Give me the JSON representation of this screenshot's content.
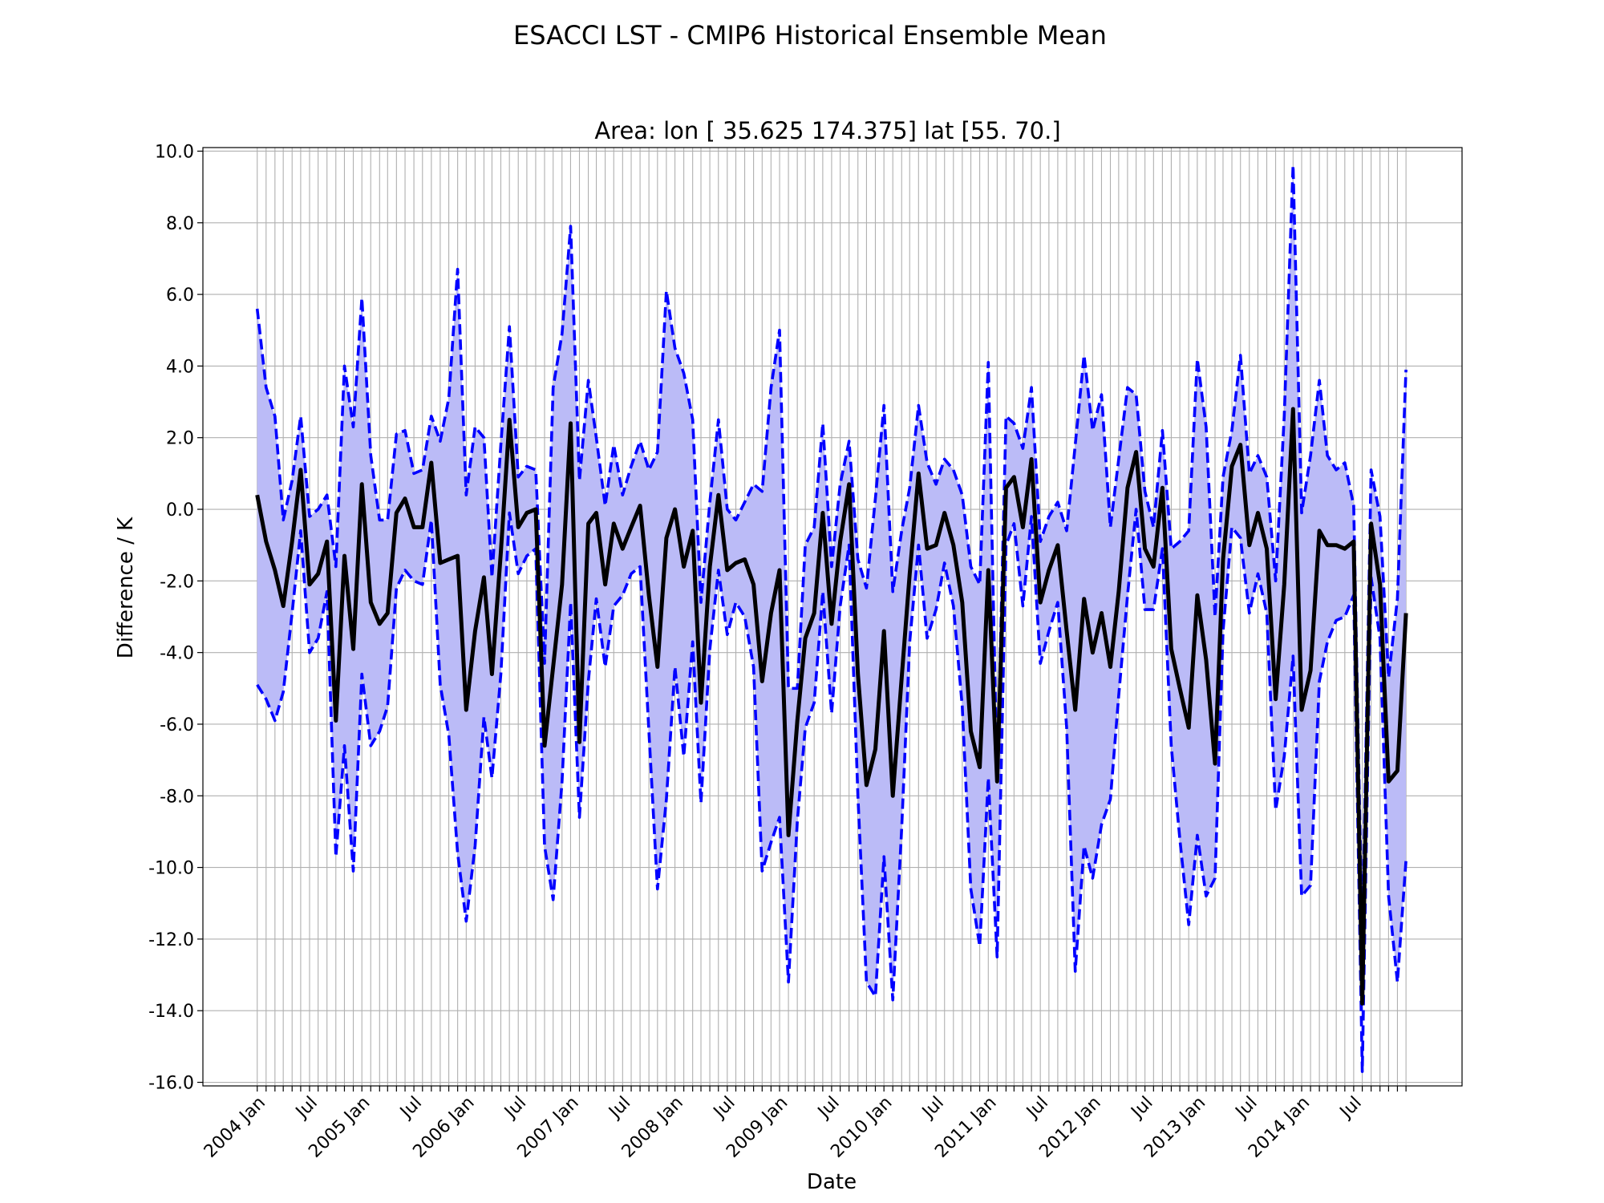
{
  "suptitle": "ESACCI LST - CMIP6 Historical Ensemble Mean",
  "chart_data": {
    "type": "line",
    "title": "Area: lon [ 35.625 174.375] lat [55. 70.]",
    "xlabel": "Date",
    "ylabel": "Difference / K",
    "ylim": [
      -16.1,
      10.1
    ],
    "yticks": [
      10,
      8,
      6,
      4,
      2,
      0,
      -2,
      -4,
      -6,
      -8,
      -10,
      -12,
      -14,
      -16
    ],
    "ytick_labels": [
      "10.0",
      "8.0",
      "6.0",
      "4.0",
      "2.0",
      "0.0",
      "-2.0",
      "-4.0",
      "-6.0",
      "-8.0",
      "-10.0",
      "-12.0",
      "-14.0",
      "-16.0"
    ],
    "xlim": [
      "2003-05-25",
      "2015-06-15"
    ],
    "x_start": "2003-12",
    "xtick_labels": [
      {
        "label": "2004 Jan",
        "date": "2004-01"
      },
      {
        "label": "Jul",
        "date": "2004-07"
      },
      {
        "label": "2005 Jan",
        "date": "2005-01"
      },
      {
        "label": "Jul",
        "date": "2005-07"
      },
      {
        "label": "2006 Jan",
        "date": "2006-01"
      },
      {
        "label": "Jul",
        "date": "2006-07"
      },
      {
        "label": "2007 Jan",
        "date": "2007-01"
      },
      {
        "label": "Jul",
        "date": "2007-07"
      },
      {
        "label": "2008 Jan",
        "date": "2008-01"
      },
      {
        "label": "Jul",
        "date": "2008-07"
      },
      {
        "label": "2009 Jan",
        "date": "2009-01"
      },
      {
        "label": "Jul",
        "date": "2009-07"
      },
      {
        "label": "2010 Jan",
        "date": "2010-01"
      },
      {
        "label": "Jul",
        "date": "2010-07"
      },
      {
        "label": "2011 Jan",
        "date": "2011-01"
      },
      {
        "label": "Jul",
        "date": "2011-07"
      },
      {
        "label": "2012 Jan",
        "date": "2012-01"
      },
      {
        "label": "Jul",
        "date": "2012-07"
      },
      {
        "label": "2013 Jan",
        "date": "2013-01"
      },
      {
        "label": "Jul",
        "date": "2013-07"
      },
      {
        "label": "2014 Jan",
        "date": "2014-01"
      },
      {
        "label": "Jul",
        "date": "2014-07"
      }
    ],
    "grid": true,
    "colors": {
      "mean": "#000000",
      "bounds": "#0000ff",
      "fill": "#bbbbf7",
      "grid": "#b0b0b0"
    },
    "series": [
      {
        "role": "mean",
        "values": [
          0.4,
          -0.9,
          -1.7,
          -2.7,
          -0.9,
          1.1,
          -2.1,
          -1.8,
          -0.9,
          -5.9,
          -1.3,
          -3.9,
          0.7,
          -2.6,
          -3.2,
          -2.9,
          -0.1,
          0.3,
          -0.5,
          -0.5,
          1.3,
          -1.5,
          -1.4,
          -1.3,
          -5.6,
          -3.4,
          -1.9,
          -4.6,
          -1.2,
          2.5,
          -0.5,
          -0.1,
          0.0,
          -6.6,
          -4.4,
          -2.1,
          2.4,
          -6.5,
          -0.4,
          -0.1,
          -2.1,
          -0.4,
          -1.1,
          -0.5,
          0.1,
          -2.4,
          -4.4,
          -0.8,
          0.0,
          -1.6,
          -0.6,
          -5.4,
          -1.6,
          0.4,
          -1.7,
          -1.5,
          -1.4,
          -2.1,
          -4.8,
          -2.9,
          -1.7,
          -9.1,
          -5.9,
          -3.6,
          -2.9,
          -0.1,
          -3.2,
          -0.9,
          0.7,
          -4.6,
          -7.7,
          -6.7,
          -3.4,
          -8.0,
          -4.7,
          -1.8,
          1.0,
          -1.1,
          -1.0,
          -0.1,
          -1.0,
          -2.6,
          -6.2,
          -7.2,
          -1.7,
          -7.6,
          0.6,
          0.9,
          -0.5,
          1.4,
          -2.6,
          -1.7,
          -1.0,
          -3.4,
          -5.6,
          -2.5,
          -4.0,
          -2.9,
          -4.4,
          -2.3,
          0.6,
          1.6,
          -1.1,
          -1.6,
          0.6,
          -3.9,
          -5.0,
          -6.1,
          -2.4,
          -4.2,
          -7.1,
          -1.4,
          1.2,
          1.8,
          -1.0,
          -0.1,
          -1.1,
          -5.3,
          -2.1,
          2.8,
          -5.6,
          -4.5,
          -0.6,
          -1.0,
          -1.0,
          -1.1,
          -0.9,
          -13.8,
          -0.4,
          -2.1,
          -7.6,
          -7.3,
          -2.9
        ]
      },
      {
        "role": "upper",
        "values": [
          5.6,
          3.4,
          2.6,
          -0.3,
          0.8,
          2.6,
          -0.2,
          0.0,
          0.4,
          -1.6,
          4.0,
          2.3,
          5.9,
          1.5,
          -0.3,
          -0.3,
          2.1,
          2.2,
          1.0,
          1.1,
          2.6,
          1.9,
          3.1,
          6.7,
          0.4,
          2.3,
          2.0,
          -1.9,
          1.8,
          5.1,
          0.9,
          1.2,
          1.1,
          -4.3,
          3.4,
          4.9,
          7.9,
          0.8,
          3.6,
          2.0,
          0.1,
          1.8,
          0.4,
          1.2,
          1.9,
          1.1,
          1.6,
          6.1,
          4.5,
          3.8,
          2.5,
          -2.6,
          0.2,
          2.5,
          0.0,
          -0.3,
          0.2,
          0.7,
          0.5,
          3.4,
          5.0,
          -5.0,
          -5.0,
          -1.0,
          -0.5,
          2.4,
          -1.6,
          0.7,
          1.9,
          -1.4,
          -2.2,
          0.3,
          2.9,
          -2.3,
          -0.6,
          0.6,
          2.9,
          1.3,
          0.7,
          1.4,
          1.1,
          0.4,
          -1.6,
          -2.1,
          4.1,
          -7.6,
          2.6,
          2.4,
          1.7,
          3.4,
          -0.9,
          -0.2,
          0.2,
          -0.6,
          1.8,
          4.3,
          2.2,
          3.2,
          -0.5,
          1.4,
          3.4,
          3.2,
          0.5,
          -0.5,
          2.2,
          -1.1,
          -0.9,
          -0.6,
          4.2,
          2.3,
          -3.0,
          0.9,
          2.2,
          4.3,
          1.0,
          1.5,
          0.9,
          -2.0,
          2.6,
          9.6,
          -0.1,
          1.5,
          3.6,
          1.5,
          1.1,
          1.3,
          0.1,
          -12.2,
          1.1,
          -0.2,
          -4.7,
          -2.5,
          3.9
        ]
      },
      {
        "role": "lower",
        "values": [
          -4.9,
          -5.3,
          -5.9,
          -5.1,
          -2.9,
          -0.6,
          -4.0,
          -3.6,
          -2.3,
          -9.7,
          -6.6,
          -10.1,
          -4.6,
          -6.6,
          -6.2,
          -5.5,
          -2.2,
          -1.7,
          -2.0,
          -2.1,
          -0.3,
          -4.9,
          -6.3,
          -9.6,
          -11.5,
          -9.4,
          -5.8,
          -7.5,
          -4.6,
          -0.1,
          -1.8,
          -1.3,
          -1.1,
          -9.4,
          -10.9,
          -7.6,
          -2.6,
          -8.6,
          -4.8,
          -2.5,
          -4.4,
          -2.7,
          -2.4,
          -1.8,
          -1.6,
          -6.2,
          -10.6,
          -8.1,
          -4.4,
          -6.9,
          -3.7,
          -8.2,
          -3.9,
          -1.7,
          -3.5,
          -2.6,
          -3.0,
          -4.4,
          -10.1,
          -9.3,
          -8.6,
          -13.2,
          -8.7,
          -6.1,
          -5.4,
          -2.3,
          -5.7,
          -2.7,
          -1.0,
          -8.0,
          -13.2,
          -13.6,
          -9.7,
          -13.7,
          -8.9,
          -3.7,
          -1.0,
          -3.6,
          -2.8,
          -1.5,
          -2.7,
          -5.5,
          -10.6,
          -12.2,
          -7.5,
          -12.5,
          -1.0,
          -0.4,
          -2.7,
          -0.2,
          -4.3,
          -3.4,
          -2.6,
          -6.1,
          -12.9,
          -9.4,
          -10.3,
          -8.8,
          -8.1,
          -5.2,
          -2.4,
          0.0,
          -2.8,
          -2.8,
          -1.1,
          -6.6,
          -9.2,
          -11.6,
          -9.1,
          -10.8,
          -10.3,
          -3.4,
          -0.5,
          -0.8,
          -2.9,
          -1.8,
          -2.9,
          -8.4,
          -6.9,
          -4.1,
          -10.8,
          -10.5,
          -4.8,
          -3.7,
          -3.1,
          -3.0,
          -2.4,
          -15.7,
          -1.9,
          -3.6,
          -10.8,
          -13.2,
          -9.8
        ]
      }
    ]
  }
}
